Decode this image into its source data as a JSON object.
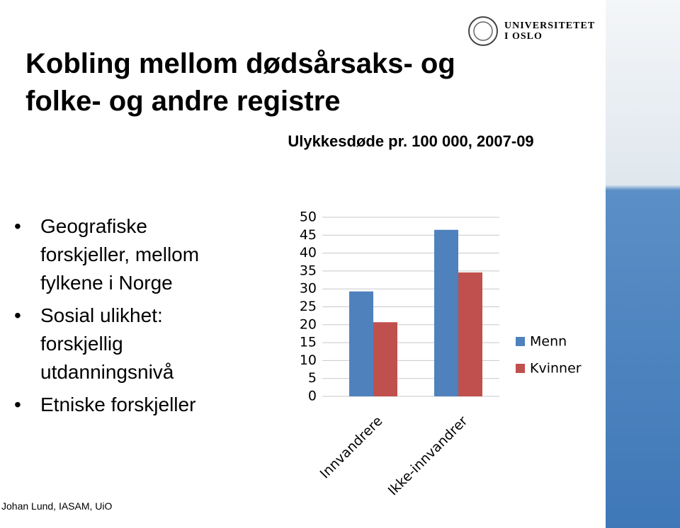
{
  "title": "Kobling mellom dødsårsaks- og folke- og andre registre",
  "bullets": [
    "Geografiske forskjeller, mellom fylkene i Norge",
    "Sosial ulikhet: forskjellig utdanningsnivå",
    "Etniske forskjeller"
  ],
  "footer": "Johan Lund, IASAM, UiO",
  "logo": {
    "line1": "UNIVERSITETET",
    "line2": "I OSLO"
  },
  "chart_data": {
    "type": "bar",
    "title": "Ulykkesdøde pr. 100 000, 2007-09",
    "categories": [
      "Innvandrere",
      "Ikke-innvandrer"
    ],
    "series": [
      {
        "name": "Menn",
        "color": "#4f81bd",
        "values": [
          29.3,
          46.5
        ]
      },
      {
        "name": "Kvinner",
        "color": "#c0504d",
        "values": [
          20.7,
          34.6
        ]
      }
    ],
    "ylim": [
      0,
      50
    ],
    "yticks": [
      0,
      5,
      10,
      15,
      20,
      25,
      30,
      35,
      40,
      45,
      50
    ],
    "grid": true,
    "legend": "right"
  }
}
